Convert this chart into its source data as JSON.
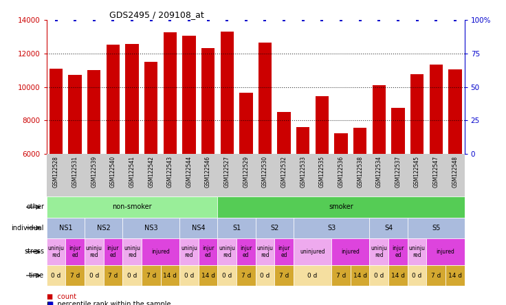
{
  "title": "GDS2495 / 209108_at",
  "samples": [
    "GSM122528",
    "GSM122531",
    "GSM122539",
    "GSM122540",
    "GSM122541",
    "GSM122542",
    "GSM122543",
    "GSM122544",
    "GSM122546",
    "GSM122527",
    "GSM122529",
    "GSM122530",
    "GSM122532",
    "GSM122533",
    "GSM122535",
    "GSM122536",
    "GSM122538",
    "GSM122534",
    "GSM122537",
    "GSM122545",
    "GSM122547",
    "GSM122548"
  ],
  "counts": [
    11100,
    10700,
    11000,
    12500,
    12550,
    11500,
    13250,
    13050,
    12300,
    13300,
    9650,
    12650,
    8500,
    7600,
    9450,
    7250,
    7550,
    10100,
    8750,
    10750,
    11350,
    11050
  ],
  "percentile": [
    100,
    100,
    100,
    100,
    100,
    100,
    100,
    100,
    100,
    100,
    100,
    100,
    100,
    100,
    100,
    100,
    100,
    100,
    100,
    100,
    100,
    100
  ],
  "bar_color": "#cc0000",
  "dot_color": "#0000cc",
  "ymin": 6000,
  "ymax": 14000,
  "yticks": [
    6000,
    8000,
    10000,
    12000,
    14000
  ],
  "y2ticks": [
    0,
    25,
    50,
    75,
    100
  ],
  "dotted_lines": [
    8000,
    10000,
    12000
  ],
  "other_row": [
    {
      "label": "non-smoker",
      "start": 0,
      "end": 9,
      "color": "#99ee99"
    },
    {
      "label": "smoker",
      "start": 9,
      "end": 22,
      "color": "#55cc55"
    }
  ],
  "individual_row": [
    {
      "label": "NS1",
      "start": 0,
      "end": 2,
      "color": "#aabbdd"
    },
    {
      "label": "NS2",
      "start": 2,
      "end": 4,
      "color": "#aabbdd"
    },
    {
      "label": "NS3",
      "start": 4,
      "end": 7,
      "color": "#aabbdd"
    },
    {
      "label": "NS4",
      "start": 7,
      "end": 9,
      "color": "#aabbdd"
    },
    {
      "label": "S1",
      "start": 9,
      "end": 11,
      "color": "#aabbdd"
    },
    {
      "label": "S2",
      "start": 11,
      "end": 13,
      "color": "#aabbdd"
    },
    {
      "label": "S3",
      "start": 13,
      "end": 17,
      "color": "#aabbdd"
    },
    {
      "label": "S4",
      "start": 17,
      "end": 19,
      "color": "#aabbdd"
    },
    {
      "label": "S5",
      "start": 19,
      "end": 22,
      "color": "#aabbdd"
    }
  ],
  "stress_row": [
    {
      "label": "uninju\nred",
      "start": 0,
      "end": 1,
      "color": "#eeaaee"
    },
    {
      "label": "injur\ned",
      "start": 1,
      "end": 2,
      "color": "#dd44dd"
    },
    {
      "label": "uninju\nred",
      "start": 2,
      "end": 3,
      "color": "#eeaaee"
    },
    {
      "label": "injur\ned",
      "start": 3,
      "end": 4,
      "color": "#dd44dd"
    },
    {
      "label": "uninju\nred",
      "start": 4,
      "end": 5,
      "color": "#eeaaee"
    },
    {
      "label": "injured",
      "start": 5,
      "end": 7,
      "color": "#dd44dd"
    },
    {
      "label": "uninju\nred",
      "start": 7,
      "end": 8,
      "color": "#eeaaee"
    },
    {
      "label": "injur\ned",
      "start": 8,
      "end": 9,
      "color": "#dd44dd"
    },
    {
      "label": "uninju\nred",
      "start": 9,
      "end": 10,
      "color": "#eeaaee"
    },
    {
      "label": "injur\ned",
      "start": 10,
      "end": 11,
      "color": "#dd44dd"
    },
    {
      "label": "uninju\nred",
      "start": 11,
      "end": 12,
      "color": "#eeaaee"
    },
    {
      "label": "injur\ned",
      "start": 12,
      "end": 13,
      "color": "#dd44dd"
    },
    {
      "label": "uninjured",
      "start": 13,
      "end": 15,
      "color": "#eeaaee"
    },
    {
      "label": "injured",
      "start": 15,
      "end": 17,
      "color": "#dd44dd"
    },
    {
      "label": "uninju\nred",
      "start": 17,
      "end": 18,
      "color": "#eeaaee"
    },
    {
      "label": "injur\ned",
      "start": 18,
      "end": 19,
      "color": "#dd44dd"
    },
    {
      "label": "uninju\nred",
      "start": 19,
      "end": 20,
      "color": "#eeaaee"
    },
    {
      "label": "injured",
      "start": 20,
      "end": 22,
      "color": "#dd44dd"
    }
  ],
  "time_row": [
    {
      "label": "0 d",
      "start": 0,
      "end": 1,
      "color": "#f5dfa0"
    },
    {
      "label": "7 d",
      "start": 1,
      "end": 2,
      "color": "#d4a830"
    },
    {
      "label": "0 d",
      "start": 2,
      "end": 3,
      "color": "#f5dfa0"
    },
    {
      "label": "7 d",
      "start": 3,
      "end": 4,
      "color": "#d4a830"
    },
    {
      "label": "0 d",
      "start": 4,
      "end": 5,
      "color": "#f5dfa0"
    },
    {
      "label": "7 d",
      "start": 5,
      "end": 6,
      "color": "#d4a830"
    },
    {
      "label": "14 d",
      "start": 6,
      "end": 7,
      "color": "#d4a830"
    },
    {
      "label": "0 d",
      "start": 7,
      "end": 8,
      "color": "#f5dfa0"
    },
    {
      "label": "14 d",
      "start": 8,
      "end": 9,
      "color": "#d4a830"
    },
    {
      "label": "0 d",
      "start": 9,
      "end": 10,
      "color": "#f5dfa0"
    },
    {
      "label": "7 d",
      "start": 10,
      "end": 11,
      "color": "#d4a830"
    },
    {
      "label": "0 d",
      "start": 11,
      "end": 12,
      "color": "#f5dfa0"
    },
    {
      "label": "7 d",
      "start": 12,
      "end": 13,
      "color": "#d4a830"
    },
    {
      "label": "0 d",
      "start": 13,
      "end": 15,
      "color": "#f5dfa0"
    },
    {
      "label": "7 d",
      "start": 15,
      "end": 16,
      "color": "#d4a830"
    },
    {
      "label": "14 d",
      "start": 16,
      "end": 17,
      "color": "#d4a830"
    },
    {
      "label": "0 d",
      "start": 17,
      "end": 18,
      "color": "#f5dfa0"
    },
    {
      "label": "14 d",
      "start": 18,
      "end": 19,
      "color": "#d4a830"
    },
    {
      "label": "0 d",
      "start": 19,
      "end": 20,
      "color": "#f5dfa0"
    },
    {
      "label": "7 d",
      "start": 20,
      "end": 21,
      "color": "#d4a830"
    },
    {
      "label": "14 d",
      "start": 21,
      "end": 22,
      "color": "#d4a830"
    }
  ],
  "legend_count_color": "#cc0000",
  "legend_pct_color": "#0000cc",
  "label_bg_color": "#cccccc"
}
